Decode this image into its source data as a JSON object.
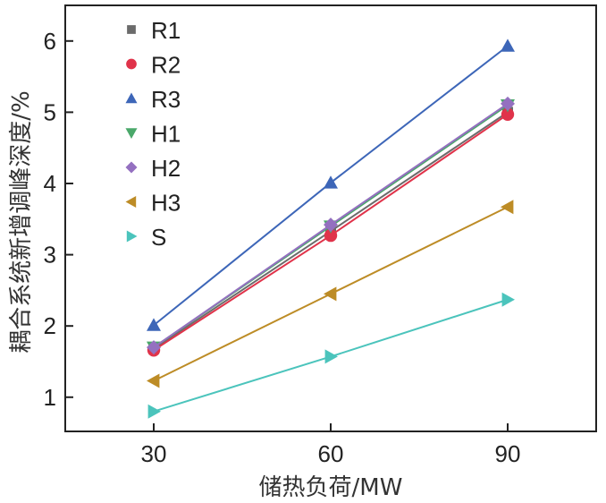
{
  "chart_data": {
    "type": "line",
    "title": "",
    "xlabel": "储热负荷/MW",
    "ylabel": "耦合系统新增调峰深度/%",
    "x": [
      30,
      60,
      90
    ],
    "xticks": [
      "30",
      "60",
      "90"
    ],
    "yticks": [
      "1",
      "2",
      "3",
      "4",
      "5",
      "6"
    ],
    "xlim": [
      15,
      105
    ],
    "ylim": [
      0.52,
      6.5
    ],
    "grid": false,
    "legend_position": "top-left",
    "series": [
      {
        "name": "R1",
        "marker": "square",
        "color": "#6b6b6b",
        "values": [
          1.68,
          3.33,
          5.0
        ]
      },
      {
        "name": "R2",
        "marker": "circle",
        "color": "#e0334a",
        "values": [
          1.66,
          3.27,
          4.97
        ]
      },
      {
        "name": "R3",
        "marker": "triangle-up",
        "color": "#3d66b8",
        "values": [
          2.01,
          4.01,
          5.93
        ]
      },
      {
        "name": "H1",
        "marker": "triangle-down",
        "color": "#4aa86a",
        "values": [
          1.7,
          3.4,
          5.1
        ]
      },
      {
        "name": "H2",
        "marker": "diamond",
        "color": "#9470c0",
        "values": [
          1.7,
          3.42,
          5.12
        ]
      },
      {
        "name": "H3",
        "marker": "triangle-left",
        "color": "#bd8c26",
        "values": [
          1.23,
          2.45,
          3.67
        ]
      },
      {
        "name": "S",
        "marker": "triangle-right",
        "color": "#4bc4bc",
        "values": [
          0.8,
          1.57,
          2.37
        ]
      }
    ]
  }
}
